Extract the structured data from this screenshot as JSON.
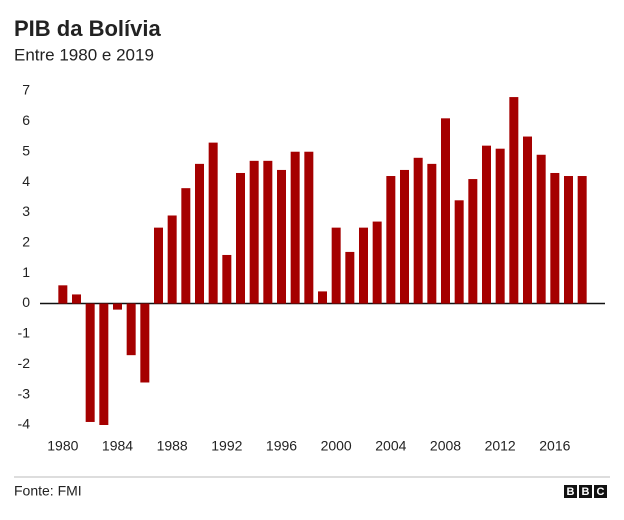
{
  "chart_data": {
    "type": "bar",
    "title": "PIB da Bolívia",
    "subtitle": "Entre 1980 e 2019",
    "categories": [
      "1980",
      null,
      null,
      null,
      "1984",
      null,
      null,
      null,
      "1988",
      null,
      null,
      null,
      "1992",
      null,
      null,
      null,
      "1996",
      null,
      null,
      null,
      "2000",
      null,
      null,
      null,
      "2004",
      null,
      null,
      null,
      "2008",
      null,
      null,
      null,
      "2012",
      null,
      null,
      null,
      "2016",
      null,
      null
    ],
    "values": [
      0.6,
      0.3,
      -3.9,
      -4.0,
      -0.2,
      -1.7,
      -2.6,
      2.5,
      2.9,
      3.8,
      4.6,
      5.3,
      1.6,
      4.3,
      4.7,
      4.7,
      4.4,
      5.0,
      5.0,
      0.4,
      2.5,
      1.7,
      2.5,
      2.7,
      4.2,
      4.4,
      4.8,
      4.6,
      6.1,
      3.4,
      4.1,
      5.2,
      5.1,
      6.8,
      5.5,
      4.9,
      4.3,
      4.2,
      4.2
    ],
    "color": "#a50000",
    "ylim": [
      -4,
      7
    ],
    "yticks": [
      -4,
      -3,
      -2,
      -1,
      0,
      1,
      2,
      3,
      4,
      5,
      6,
      7
    ],
    "grid": false
  },
  "footer": {
    "source": "Fonte: FMI",
    "logo": [
      "B",
      "B",
      "C"
    ]
  }
}
